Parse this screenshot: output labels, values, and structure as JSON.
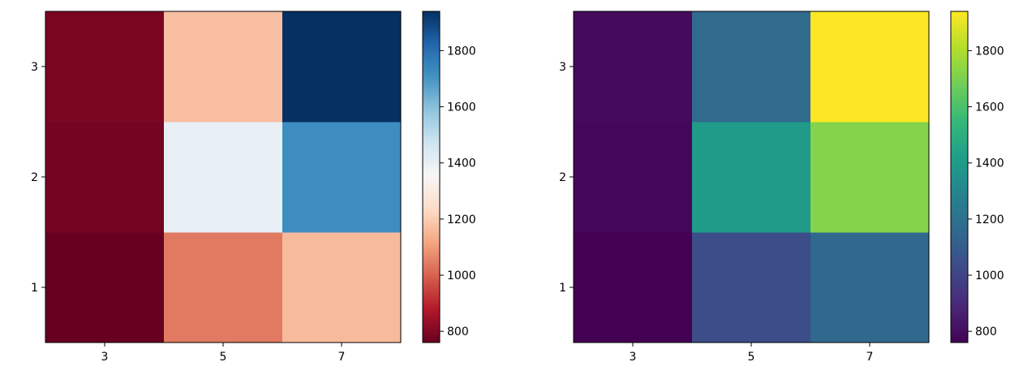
{
  "chart_data": [
    {
      "type": "heatmap",
      "colormap": "RdBu",
      "x_categories": [
        "3",
        "5",
        "7"
      ],
      "y_categories": [
        "1",
        "2",
        "3"
      ],
      "values": [
        [
          760,
          1040,
          1160
        ],
        [
          780,
          1400,
          1720
        ],
        [
          790,
          1170,
          1940
        ]
      ],
      "color_range": [
        760,
        1940
      ],
      "colorbar_ticks": [
        800,
        1000,
        1200,
        1400,
        1600,
        1800
      ],
      "title": "",
      "xlabel": "",
      "ylabel": ""
    },
    {
      "type": "heatmap",
      "colormap": "viridis",
      "x_categories": [
        "3",
        "5",
        "7"
      ],
      "y_categories": [
        "1",
        "2",
        "3"
      ],
      "values": [
        [
          760,
          1040,
          1160
        ],
        [
          780,
          1400,
          1720
        ],
        [
          790,
          1170,
          1940
        ]
      ],
      "color_range": [
        760,
        1940
      ],
      "colorbar_ticks": [
        800,
        1000,
        1200,
        1400,
        1600,
        1800
      ],
      "title": "",
      "xlabel": "",
      "ylabel": ""
    }
  ]
}
